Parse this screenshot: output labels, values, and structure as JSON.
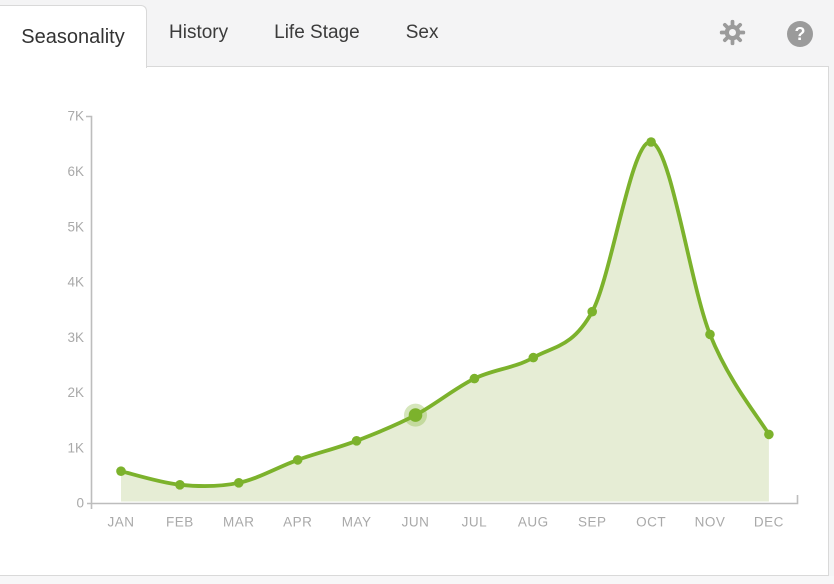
{
  "tabs": [
    {
      "label": "Seasonality",
      "active": true
    },
    {
      "label": "History",
      "active": false
    },
    {
      "label": "Life Stage",
      "active": false
    },
    {
      "label": "Sex",
      "active": false
    }
  ],
  "toolbar": {
    "settings_icon": "gear",
    "help_icon": "question-mark-circle",
    "help_glyph": "?"
  },
  "chart_data": {
    "type": "area",
    "title": "Seasonality",
    "categories": [
      "JAN",
      "FEB",
      "MAR",
      "APR",
      "MAY",
      "JUN",
      "JUL",
      "AUG",
      "SEP",
      "OCT",
      "NOV",
      "DEC"
    ],
    "values": [
      575,
      330,
      365,
      780,
      1125,
      1590,
      2250,
      2630,
      3460,
      6530,
      3050,
      1240
    ],
    "yticks": [
      {
        "v": 0,
        "label": "0"
      },
      {
        "v": 1000,
        "label": "1K"
      },
      {
        "v": 2000,
        "label": "2K"
      },
      {
        "v": 3000,
        "label": "3K"
      },
      {
        "v": 4000,
        "label": "4K"
      },
      {
        "v": 5000,
        "label": "5K"
      },
      {
        "v": 6000,
        "label": "6K"
      },
      {
        "v": 7000,
        "label": "7K"
      }
    ],
    "ylim": [
      0,
      7000
    ],
    "xlabel": "",
    "ylabel": "",
    "grid": false,
    "legend": null,
    "highlight": {
      "index": 5,
      "category": "JUN"
    },
    "colors": {
      "line": "#7cb22c",
      "area": "#e6edd5",
      "halo": "rgba(124,178,44,0.32)",
      "axis": "#bdbdbd",
      "tick_label": "#a9a9a9"
    }
  }
}
